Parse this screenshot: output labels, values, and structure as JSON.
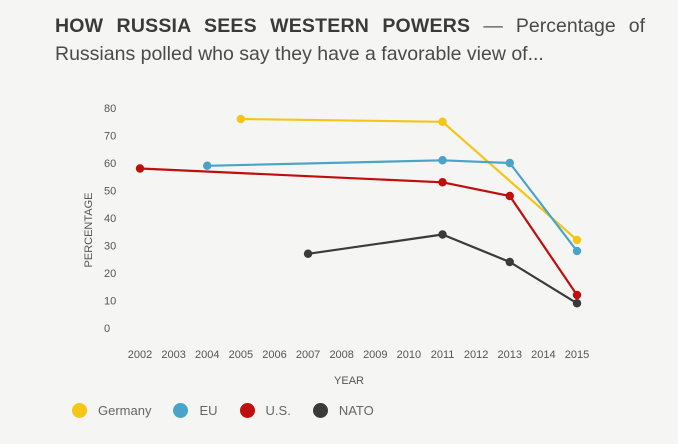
{
  "header": {
    "title": "HOW RUSSIA SEES WESTERN POWERS",
    "dash": "—",
    "subtitle": "Percentage of Russians polled who say they have a favorable view of..."
  },
  "chart_data": {
    "type": "line",
    "xlabel": "YEAR",
    "ylabel": "PERCENTAGE",
    "x_ticks": [
      "2002",
      "2003",
      "2004",
      "2005",
      "2006",
      "2007",
      "2008",
      "2009",
      "2010",
      "2011",
      "2012",
      "2013",
      "2014",
      "2015"
    ],
    "y_ticks": [
      "0",
      "10",
      "20",
      "30",
      "40",
      "50",
      "60",
      "70",
      "80"
    ],
    "xlim": [
      2002,
      2015
    ],
    "ylim": [
      0,
      80
    ],
    "grid": false,
    "legend_position": "bottom-left",
    "series": [
      {
        "name": "Germany",
        "color": "#f5c518",
        "points": [
          [
            2005,
            76
          ],
          [
            2011,
            75
          ],
          [
            2015,
            32
          ]
        ]
      },
      {
        "name": "EU",
        "color": "#4aa3c8",
        "points": [
          [
            2004,
            59
          ],
          [
            2011,
            61
          ],
          [
            2013,
            60
          ],
          [
            2015,
            28
          ]
        ]
      },
      {
        "name": "U.S.",
        "color": "#c00d0d",
        "points": [
          [
            2002,
            58
          ],
          [
            2011,
            53
          ],
          [
            2013,
            48
          ],
          [
            2015,
            12
          ]
        ]
      },
      {
        "name": "NATO",
        "color": "#3a3a3a",
        "points": [
          [
            2007,
            27
          ],
          [
            2011,
            34
          ],
          [
            2013,
            24
          ],
          [
            2015,
            9
          ]
        ]
      }
    ]
  }
}
